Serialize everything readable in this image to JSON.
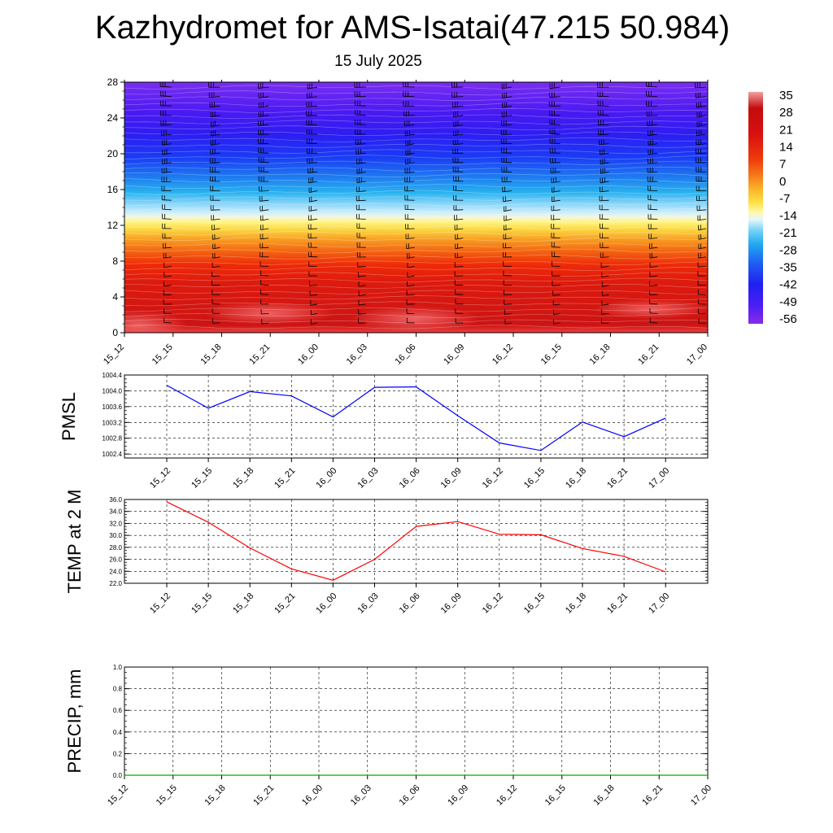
{
  "title": "Kazhydromet for AMS-Isatai(47.215 50.984)",
  "subtitle": "15 July 2025",
  "colors": {
    "pmsl_line": "#0000ff",
    "temp_line": "#ff0000",
    "precip_line": "#00aa00",
    "grid": "#000000"
  },
  "chart_data": [
    {
      "type": "heatmap",
      "name": "cross-section",
      "x": [
        "15_12",
        "15_15",
        "15_18",
        "15_21",
        "16_00",
        "16_03",
        "16_06",
        "16_09",
        "16_12",
        "16_15",
        "16_18",
        "16_21",
        "17_00"
      ],
      "y_ticks": [
        "0",
        "4",
        "8",
        "12",
        "16",
        "20",
        "24",
        "28"
      ],
      "ylim": [
        0,
        28
      ],
      "colorbar": {
        "labels": [
          "35",
          "28",
          "21",
          "14",
          "7",
          "0",
          "-7",
          "-14",
          "-21",
          "-28",
          "-35",
          "-42",
          "-49",
          "-56"
        ],
        "range": [
          -60,
          38
        ]
      },
      "wind_barbs": true
    },
    {
      "type": "line",
      "name": "pmsl",
      "ylabel": "PMSL",
      "categories": [
        "15_12",
        "15_15",
        "15_18",
        "15_21",
        "16_00",
        "16_03",
        "16_06",
        "16_09",
        "16_12",
        "16_15",
        "16_18",
        "16_21",
        "17_00"
      ],
      "values": [
        1004.14,
        1003.56,
        1003.98,
        1003.87,
        1003.34,
        1004.09,
        1004.1,
        1003.37,
        1002.68,
        1002.49,
        1003.21,
        1002.84,
        1003.31
      ],
      "ylim": [
        1002.3,
        1004.4
      ],
      "y_ticks": [
        "1004.4",
        "1004.0",
        "1003.6",
        "1003.2",
        "1002.8",
        "1002.4"
      ],
      "grid": true
    },
    {
      "type": "line",
      "name": "temp",
      "ylabel": "TEMP at 2 M",
      "categories": [
        "15_12",
        "15_15",
        "15_18",
        "15_21",
        "16_00",
        "16_03",
        "16_06",
        "16_09",
        "16_12",
        "16_15",
        "16_18",
        "16_21",
        "17_00"
      ],
      "values": [
        35.6,
        32.2,
        27.9,
        24.4,
        22.5,
        26.0,
        31.5,
        32.3,
        30.2,
        30.1,
        27.8,
        26.5,
        23.9
      ],
      "ylim": [
        22.0,
        36.0
      ],
      "y_ticks": [
        "36.0",
        "34.0",
        "32.0",
        "30.0",
        "28.0",
        "26.0",
        "24.0",
        "22.0"
      ],
      "grid": true
    },
    {
      "type": "line",
      "name": "precip",
      "ylabel": "PRECIP, mm",
      "categories": [
        "15_12",
        "15_15",
        "15_18",
        "15_21",
        "16_00",
        "16_03",
        "16_06",
        "16_09",
        "16_12",
        "16_15",
        "16_18",
        "16_21",
        "17_00"
      ],
      "values": [
        0,
        0,
        0,
        0,
        0,
        0,
        0,
        0,
        0,
        0,
        0,
        0,
        0
      ],
      "ylim": [
        0,
        1.0
      ],
      "y_ticks": [
        "1.0",
        "0.8",
        "0.6",
        "0.4",
        "0.2",
        "0.0"
      ],
      "grid": true
    }
  ]
}
